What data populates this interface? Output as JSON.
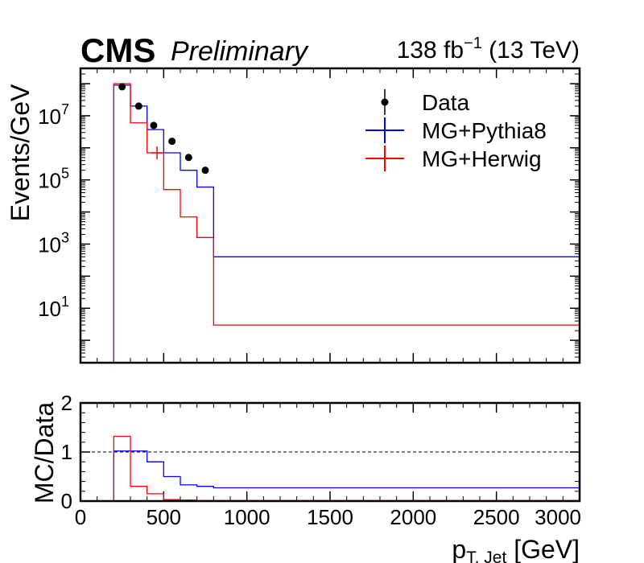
{
  "header": {
    "experiment": "CMS",
    "status": "Preliminary",
    "lumi_prefix": "138 fb",
    "lumi_exp": "−1",
    "lumi_suffix": " (13 TeV)"
  },
  "chart_data": [
    {
      "type": "histogram",
      "panel": "main",
      "ylabel": "Events/GeV",
      "yscale": "log",
      "ylim": [
        0.2,
        300000000
      ],
      "xlim": [
        0,
        3000
      ],
      "grid": false,
      "legend_position": "top-right",
      "y_ticks": [
        {
          "value": 10,
          "base": "10",
          "exp": "1"
        },
        {
          "value": 1000,
          "base": "10",
          "exp": "3"
        },
        {
          "value": 100000,
          "base": "10",
          "exp": "5"
        },
        {
          "value": 10000000,
          "base": "10",
          "exp": "7"
        }
      ],
      "bin_edges": [
        200,
        300,
        400,
        500,
        600,
        700,
        800,
        3000
      ],
      "series": [
        {
          "name": "Data",
          "kind": "points",
          "color": "#000000",
          "x": [
            250,
            350,
            440,
            550,
            650,
            750
          ],
          "values": [
            80000000,
            20000000,
            5000000,
            1600000,
            500000,
            200000
          ]
        },
        {
          "name": "MG+Pythia8",
          "kind": "step",
          "color": "#0000ff",
          "values": [
            90000000,
            20000000,
            3700000,
            700000,
            200000,
            60000,
            400
          ]
        },
        {
          "name": "MG+Herwig",
          "kind": "step",
          "color": "#ff0000",
          "values": [
            100000000,
            6000000,
            700000,
            50000,
            7000,
            1600,
            3
          ],
          "marker": {
            "x": 460,
            "value": 700000
          }
        }
      ]
    },
    {
      "type": "histogram",
      "panel": "ratio",
      "ylabel": "MC/Data",
      "xlabel_main": "p",
      "xlabel_sub": "T, Jet",
      "xlabel_unit": " [GeV]",
      "xlim": [
        0,
        3000
      ],
      "ylim": [
        0,
        2
      ],
      "x_ticks": [
        0,
        500,
        1000,
        1500,
        2000,
        2500,
        3000
      ],
      "y_ticks": [
        0,
        1,
        2
      ],
      "reference_line": 1,
      "bin_edges": [
        200,
        300,
        400,
        500,
        600,
        700,
        800,
        3000
      ],
      "series": [
        {
          "name": "MG+Pythia8",
          "color": "#0000ff",
          "values": [
            1.02,
            1.02,
            0.8,
            0.5,
            0.33,
            0.3,
            0.27
          ]
        },
        {
          "name": "MG+Herwig",
          "color": "#ff0000",
          "values": [
            1.32,
            0.3,
            0.15,
            0.03,
            0.02,
            0.01,
            0.01
          ]
        }
      ]
    }
  ]
}
